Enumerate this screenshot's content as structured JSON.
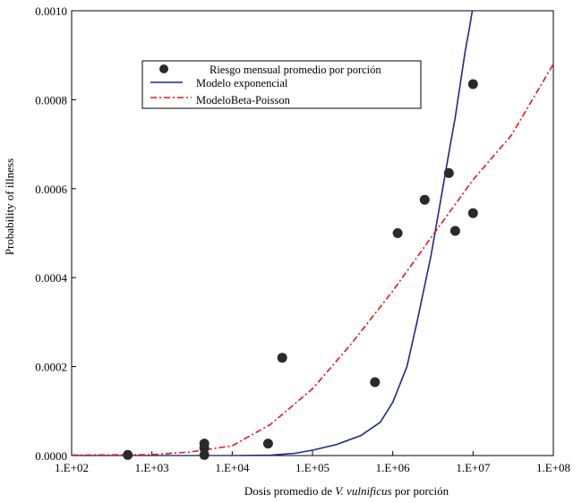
{
  "chart_data": {
    "type": "scatter",
    "title": "",
    "xlabel": {
      "prefix": "Dosis promedio de ",
      "italic": "V. vulnificus",
      "suffix": " por porción"
    },
    "ylabel": "Probability of illness",
    "xscale": "log",
    "xlim": [
      100,
      100000000
    ],
    "ylim": [
      0,
      0.001
    ],
    "x_ticks": [
      {
        "value": 100,
        "label": "1.E+02"
      },
      {
        "value": 1000,
        "label": "1.E+03"
      },
      {
        "value": 10000,
        "label": "1.E+04"
      },
      {
        "value": 100000,
        "label": "1.E+05"
      },
      {
        "value": 1000000,
        "label": "1.E+06"
      },
      {
        "value": 10000000,
        "label": "1.E+07"
      },
      {
        "value": 100000000,
        "label": "1.E+08"
      }
    ],
    "y_ticks": [
      {
        "value": 0,
        "label": "0.0000"
      },
      {
        "value": 0.0002,
        "label": "0.0002"
      },
      {
        "value": 0.0004,
        "label": "0.0004"
      },
      {
        "value": 0.0006,
        "label": "0.0006"
      },
      {
        "value": 0.0008,
        "label": "0.0008"
      },
      {
        "value": 0.001,
        "label": "0.0010"
      }
    ],
    "grid": false,
    "legend_position": "top-left",
    "legend": [
      {
        "label": "Riesgo mensual promedio por porción",
        "marker": "dot",
        "color": "#2a2a2a"
      },
      {
        "label": "Modelo exponencial",
        "marker": "solid-line",
        "color": "#1c2a8c"
      },
      {
        "label": "ModeloBeta-Poisson",
        "marker": "dash-dot-line",
        "color": "#e8141c"
      }
    ],
    "series": [
      {
        "name": "Riesgo mensual promedio por porción",
        "kind": "scatter",
        "color": "#2a2a2a",
        "points": [
          {
            "x": 500,
            "y": 1.5e-06
          },
          {
            "x": 4500,
            "y": 1.5e-06
          },
          {
            "x": 4500,
            "y": 1.7e-05
          },
          {
            "x": 4500,
            "y": 2.7e-05
          },
          {
            "x": 28000,
            "y": 2.7e-05
          },
          {
            "x": 42000,
            "y": 0.00022
          },
          {
            "x": 600000,
            "y": 0.000165
          },
          {
            "x": 1150000,
            "y": 0.0005
          },
          {
            "x": 2500000,
            "y": 0.000575
          },
          {
            "x": 5000000,
            "y": 0.000635
          },
          {
            "x": 6000000,
            "y": 0.000505
          },
          {
            "x": 10000000,
            "y": 0.000545
          },
          {
            "x": 10000000,
            "y": 0.000835
          }
        ]
      },
      {
        "name": "Modelo exponencial",
        "kind": "line",
        "style": "solid",
        "color": "#1c2a8c",
        "points": [
          {
            "x": 100,
            "y": 0
          },
          {
            "x": 10000,
            "y": 0
          },
          {
            "x": 30000,
            "y": 1e-06
          },
          {
            "x": 60000,
            "y": 5e-06
          },
          {
            "x": 100000,
            "y": 1.2e-05
          },
          {
            "x": 200000,
            "y": 2.5e-05
          },
          {
            "x": 400000,
            "y": 4.5e-05
          },
          {
            "x": 700000,
            "y": 7.5e-05
          },
          {
            "x": 1000000,
            "y": 0.00012
          },
          {
            "x": 1500000,
            "y": 0.0002
          },
          {
            "x": 2000000,
            "y": 0.0003
          },
          {
            "x": 3000000,
            "y": 0.00045
          },
          {
            "x": 4000000,
            "y": 0.00058
          },
          {
            "x": 5000000,
            "y": 0.00068
          },
          {
            "x": 6000000,
            "y": 0.00076
          },
          {
            "x": 7000000,
            "y": 0.00084
          },
          {
            "x": 8000000,
            "y": 0.00091
          },
          {
            "x": 9000000,
            "y": 0.00096
          },
          {
            "x": 9800000,
            "y": 0.001
          }
        ]
      },
      {
        "name": "ModeloBeta-Poisson",
        "kind": "line",
        "style": "dash-dot",
        "color": "#e8141c",
        "points": [
          {
            "x": 100,
            "y": 1e-06
          },
          {
            "x": 1000,
            "y": 2e-06
          },
          {
            "x": 3000,
            "y": 8e-06
          },
          {
            "x": 10000,
            "y": 2.2e-05
          },
          {
            "x": 30000,
            "y": 7e-05
          },
          {
            "x": 100000,
            "y": 0.00015
          },
          {
            "x": 300000,
            "y": 0.00025
          },
          {
            "x": 1000000,
            "y": 0.00037
          },
          {
            "x": 3000000,
            "y": 0.00049
          },
          {
            "x": 10000000,
            "y": 0.00062
          },
          {
            "x": 30000000,
            "y": 0.00072
          },
          {
            "x": 100000000,
            "y": 0.00088
          }
        ]
      }
    ]
  }
}
